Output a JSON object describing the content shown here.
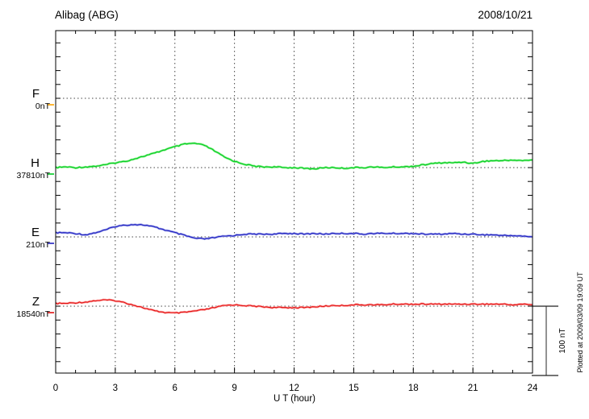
{
  "header": {
    "station_title": "Alibag (ABG)",
    "date": "2008/10/21"
  },
  "axis": {
    "x_label": "U T (hour)",
    "x_ticks": [
      "0",
      "3",
      "6",
      "9",
      "12",
      "15",
      "18",
      "21",
      "24"
    ],
    "x_major_step_hours": 3,
    "x_minor_step_hours": 1,
    "x_range_hours": [
      0,
      24
    ],
    "y_tick_step_nT": 20
  },
  "scale_bar": {
    "label": "100 nT",
    "nT": 100
  },
  "footer_note": "Plotted at 2009/03/09 19:09 UT",
  "chart_data": {
    "type": "line",
    "title": "Alibag (ABG)",
    "subtitle": "2008/10/21",
    "xlabel": "U T (hour)",
    "x_range_hours": [
      0,
      24
    ],
    "x_step_hours": 0.5,
    "row_spacing_nT": 100,
    "grid": "dotted vertical lines every 3 hours; dotted horizontal baseline per component",
    "legend_position": "left margin, one label per stacked row",
    "series": [
      {
        "component": "F",
        "baseline_label": "0nT",
        "baseline_value_nT": 0,
        "color": "#FFA500",
        "offsets_nT": null,
        "note": "no data trace plotted (baseline only)"
      },
      {
        "component": "H",
        "baseline_label": "37810nT",
        "baseline_value_nT": 37810,
        "color": "#00CC22",
        "halo_color": "#88EE88",
        "offsets_nT": [
          0,
          1,
          0,
          1,
          2,
          4,
          7,
          9,
          13,
          17,
          21,
          26,
          30,
          34,
          35,
          32,
          24,
          15,
          9,
          5,
          2,
          1,
          1,
          0,
          0,
          -1,
          -2,
          0,
          0,
          -1,
          0,
          0,
          1,
          0,
          1,
          1,
          2,
          4,
          6,
          7,
          7,
          8,
          6,
          9,
          10,
          10,
          11,
          10,
          11
        ]
      },
      {
        "component": "E",
        "baseline_label": "210nT",
        "baseline_value_nT": 210,
        "color": "#2020C0",
        "halo_color": "#9AA0E8",
        "offsets_nT": [
          6,
          6,
          5,
          3,
          6,
          10,
          15,
          17,
          18,
          17,
          14,
          10,
          6,
          2,
          -2,
          -3,
          -1,
          1,
          2,
          4,
          4,
          4,
          4,
          5,
          5,
          4,
          5,
          4,
          5,
          5,
          5,
          4,
          5,
          5,
          5,
          5,
          5,
          4,
          4,
          4,
          5,
          4,
          4,
          3,
          3,
          2,
          2,
          1,
          0
        ]
      },
      {
        "component": "Z",
        "baseline_label": "18540nT",
        "baseline_value_nT": 18540,
        "color": "#E01010",
        "halo_color": "#FFA0A0",
        "offsets_nT": [
          4,
          4,
          5,
          6,
          8,
          9,
          8,
          5,
          1,
          -3,
          -7,
          -9,
          -10,
          -9,
          -7,
          -5,
          -2,
          1,
          2,
          1,
          0,
          -1,
          -2,
          -2,
          -2,
          -2,
          -1,
          0,
          1,
          1,
          2,
          2,
          2,
          2,
          3,
          3,
          3,
          3,
          3,
          3,
          3,
          3,
          3,
          3,
          3,
          3,
          2,
          3,
          2
        ]
      }
    ]
  }
}
